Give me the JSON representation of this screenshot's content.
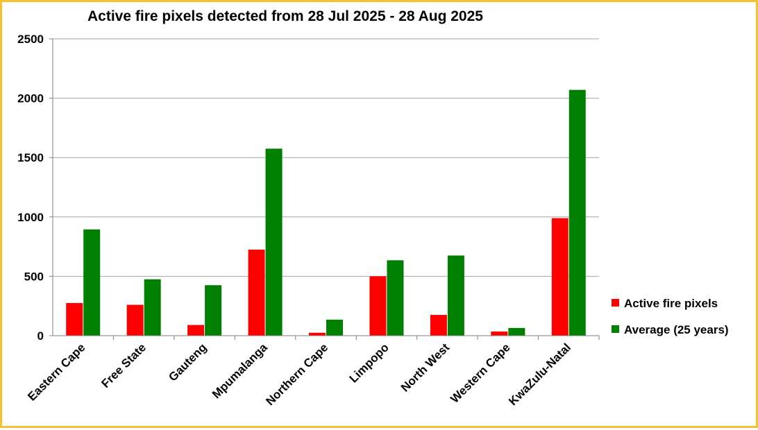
{
  "chart_data": {
    "type": "bar",
    "title": "Active fire pixels detected from 28 Jul 2025 - 28 Aug 2025",
    "xlabel": "",
    "ylabel": "",
    "ylim": [
      0,
      2500
    ],
    "yticks": [
      "0",
      "500",
      "1000",
      "1500",
      "2000",
      "2500"
    ],
    "grid": true,
    "legend_position": "right",
    "categories": [
      "Eastern Cape",
      "Free State",
      "Gauteng",
      "Mpumalanga",
      "Northern Cape",
      "Limpopo",
      "North West",
      "Western Cape",
      "KwaZulu-Natal"
    ],
    "series": [
      {
        "name": "Active fire pixels",
        "color": "#ff0000",
        "values": [
          275,
          260,
          90,
          725,
          25,
          500,
          175,
          35,
          990
        ]
      },
      {
        "name": "Average (25 years)",
        "color": "#008000",
        "values": [
          895,
          475,
          425,
          1575,
          135,
          635,
          675,
          65,
          2070
        ]
      }
    ]
  }
}
